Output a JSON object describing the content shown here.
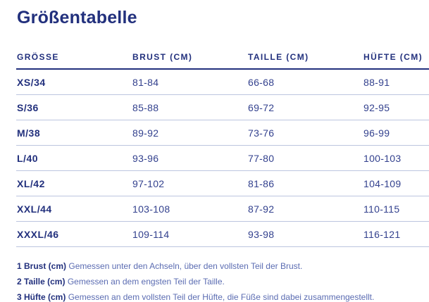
{
  "page": {
    "title": "Größentabelle"
  },
  "table": {
    "columns": [
      "GRÖSSE",
      "BRUST (CM)",
      "TAILLE (CM)",
      "HÜFTE (CM)"
    ],
    "rows": [
      {
        "size": "XS/34",
        "brust": "81-84",
        "taille": "66-68",
        "huefte": "88-91"
      },
      {
        "size": "S/36",
        "brust": "85-88",
        "taille": "69-72",
        "huefte": "92-95"
      },
      {
        "size": "M/38",
        "brust": "89-92",
        "taille": "73-76",
        "huefte": "96-99"
      },
      {
        "size": "L/40",
        "brust": "93-96",
        "taille": "77-80",
        "huefte": "100-103"
      },
      {
        "size": "XL/42",
        "brust": "97-102",
        "taille": "81-86",
        "huefte": "104-109"
      },
      {
        "size": "XXL/44",
        "brust": "103-108",
        "taille": "87-92",
        "huefte": "110-115"
      },
      {
        "size": "XXXL/46",
        "brust": "109-114",
        "taille": "93-98",
        "huefte": "116-121"
      }
    ]
  },
  "footnotes": [
    {
      "label": "1 Brust (cm)",
      "text": "Gemessen unter den Achseln, über den vollsten Teil der Brust."
    },
    {
      "label": "2 Taille (cm)",
      "text": "Gemessen an dem engsten Teil der Taille."
    },
    {
      "label": "3 Hüfte (cm)",
      "text": "Gemessen an dem vollsten Teil der Hüfte, die Füße sind dabei zusammengestellt."
    }
  ],
  "colors": {
    "navy": "#22307d",
    "value_text": "#33418e",
    "footnote_text": "#5b6cb2",
    "row_separator": "#bcc5df"
  }
}
